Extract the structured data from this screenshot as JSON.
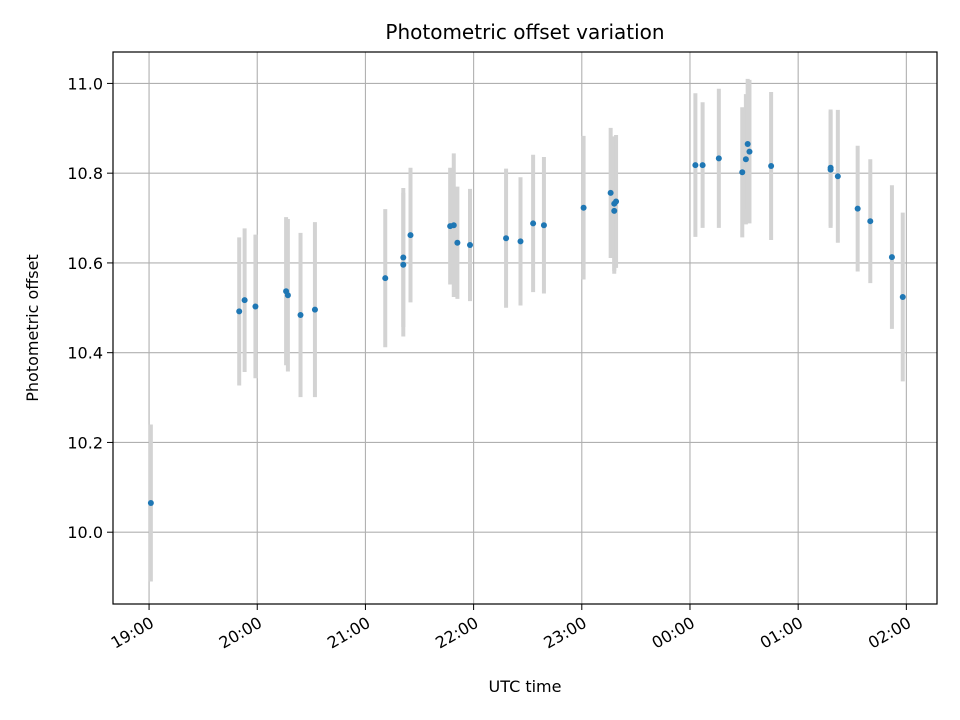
{
  "chart_data": {
    "type": "scatter",
    "title": "Photometric offset variation",
    "xlabel": "UTC time",
    "ylabel": "Photometric offset",
    "x_tick_labels": [
      "19:00",
      "20:00",
      "21:00",
      "22:00",
      "23:00",
      "00:00",
      "01:00",
      "02:00"
    ],
    "y_tick_labels": [
      "10.0",
      "10.2",
      "10.4",
      "10.6",
      "10.8",
      "11.0"
    ],
    "ylim": [
      9.84,
      11.07
    ],
    "xlim": [
      "18:40",
      "02:17"
    ],
    "grid": true,
    "colors": {
      "points": "#1f77b4",
      "error_bars": "#d3d3d3",
      "grid": "#b0b0b0"
    },
    "series": [
      {
        "points": [
          {
            "x": "19:01",
            "y": 10.065,
            "yerr": 0.175
          },
          {
            "x": "19:50",
            "y": 10.492,
            "yerr": 0.165
          },
          {
            "x": "19:53",
            "y": 10.517,
            "yerr": 0.16
          },
          {
            "x": "19:59",
            "y": 10.503,
            "yerr": 0.16
          },
          {
            "x": "20:16",
            "y": 10.537,
            "yerr": 0.165
          },
          {
            "x": "20:17",
            "y": 10.528,
            "yerr": 0.17
          },
          {
            "x": "20:24",
            "y": 10.484,
            "yerr": 0.183
          },
          {
            "x": "20:32",
            "y": 10.496,
            "yerr": 0.195
          },
          {
            "x": "21:11",
            "y": 10.566,
            "yerr": 0.154
          },
          {
            "x": "21:21",
            "y": 10.612,
            "yerr": 0.155
          },
          {
            "x": "21:21",
            "y": 10.596,
            "yerr": 0.16
          },
          {
            "x": "21:25",
            "y": 10.662,
            "yerr": 0.15
          },
          {
            "x": "21:47",
            "y": 10.682,
            "yerr": 0.13
          },
          {
            "x": "21:49",
            "y": 10.684,
            "yerr": 0.16
          },
          {
            "x": "21:51",
            "y": 10.645,
            "yerr": 0.125
          },
          {
            "x": "21:58",
            "y": 10.64,
            "yerr": 0.125
          },
          {
            "x": "22:18",
            "y": 10.655,
            "yerr": 0.155
          },
          {
            "x": "22:26",
            "y": 10.648,
            "yerr": 0.143
          },
          {
            "x": "22:33",
            "y": 10.688,
            "yerr": 0.153
          },
          {
            "x": "22:39",
            "y": 10.684,
            "yerr": 0.152
          },
          {
            "x": "23:01",
            "y": 10.723,
            "yerr": 0.16
          },
          {
            "x": "23:16",
            "y": 10.756,
            "yerr": 0.145
          },
          {
            "x": "23:18",
            "y": 10.716,
            "yerr": 0.14
          },
          {
            "x": "23:18",
            "y": 10.732,
            "yerr": 0.15
          },
          {
            "x": "23:19",
            "y": 10.737,
            "yerr": 0.148
          },
          {
            "x": "00:03",
            "y": 10.818,
            "yerr": 0.16
          },
          {
            "x": "00:07",
            "y": 10.818,
            "yerr": 0.14
          },
          {
            "x": "00:16",
            "y": 10.833,
            "yerr": 0.155
          },
          {
            "x": "00:29",
            "y": 10.802,
            "yerr": 0.145
          },
          {
            "x": "00:31",
            "y": 10.831,
            "yerr": 0.145
          },
          {
            "x": "00:32",
            "y": 10.865,
            "yerr": 0.145
          },
          {
            "x": "00:33",
            "y": 10.848,
            "yerr": 0.16
          },
          {
            "x": "00:45",
            "y": 10.816,
            "yerr": 0.165
          },
          {
            "x": "01:18",
            "y": 10.808,
            "yerr": 0.13
          },
          {
            "x": "01:18",
            "y": 10.812,
            "yerr": 0.13
          },
          {
            "x": "01:22",
            "y": 10.793,
            "yerr": 0.148
          },
          {
            "x": "01:33",
            "y": 10.721,
            "yerr": 0.14
          },
          {
            "x": "01:40",
            "y": 10.693,
            "yerr": 0.138
          },
          {
            "x": "01:52",
            "y": 10.613,
            "yerr": 0.16
          },
          {
            "x": "01:58",
            "y": 10.524,
            "yerr": 0.188
          }
        ]
      }
    ]
  }
}
